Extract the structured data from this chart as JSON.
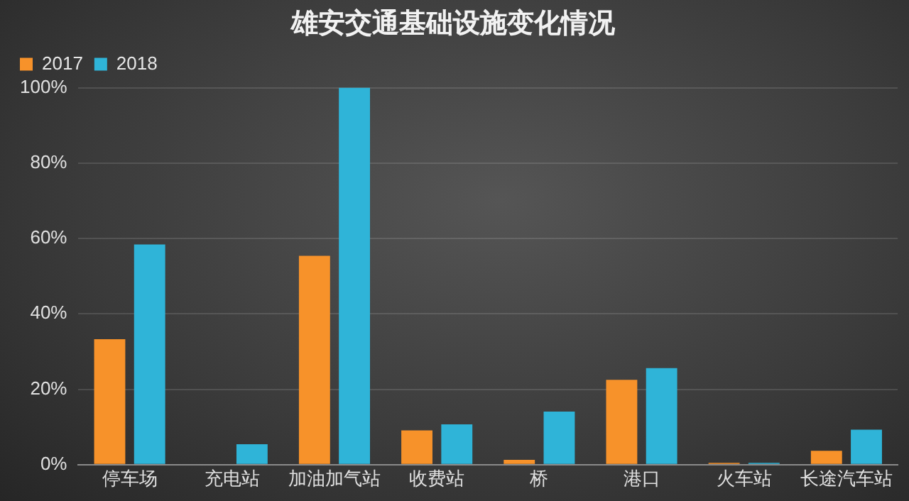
{
  "chart_data": {
    "type": "bar",
    "title": "雄安交通基础设施变化情况",
    "categories": [
      "停车场",
      "充电站",
      "加油加气站",
      "收费站",
      "桥",
      "港口",
      "火车站",
      "长途汽车站"
    ],
    "series": [
      {
        "name": "2017",
        "color": "#f7922a",
        "values": [
          33.3,
          0,
          55.4,
          9.1,
          1.3,
          22.5,
          0.5,
          3.7
        ]
      },
      {
        "name": "2018",
        "color": "#2fb4d8",
        "values": [
          58.4,
          5.4,
          100,
          10.7,
          14.1,
          25.6,
          0.5,
          9.3
        ]
      }
    ],
    "ylim": [
      0,
      100
    ],
    "yticks": [
      {
        "value": 0,
        "label": "0%"
      },
      {
        "value": 20,
        "label": "20%"
      },
      {
        "value": 40,
        "label": "40%"
      },
      {
        "value": 60,
        "label": "60%"
      },
      {
        "value": 80,
        "label": "80%"
      },
      {
        "value": 100,
        "label": "100%"
      }
    ],
    "grid": "y",
    "legend": "top left"
  }
}
